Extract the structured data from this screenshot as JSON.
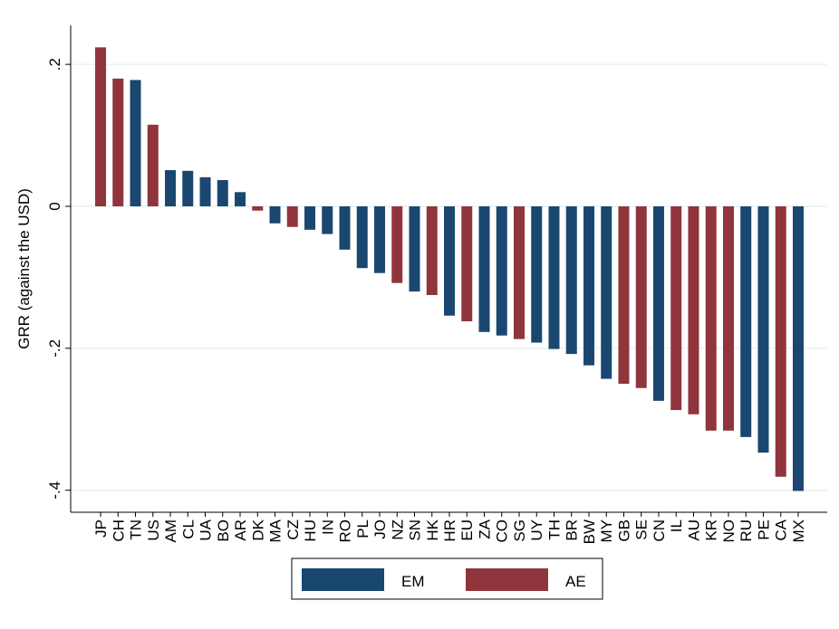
{
  "chart_data": {
    "type": "bar",
    "ylabel": "GRR (against the USD)",
    "categories": [
      "JP",
      "CH",
      "TN",
      "US",
      "AM",
      "CL",
      "UA",
      "BO",
      "AR",
      "DK",
      "MA",
      "CZ",
      "HU",
      "IN",
      "RO",
      "PL",
      "JO",
      "NZ",
      "SN",
      "HK",
      "HR",
      "EU",
      "ZA",
      "CO",
      "SG",
      "UY",
      "TH",
      "BR",
      "BW",
      "MY",
      "GB",
      "SE",
      "CN",
      "IL",
      "AU",
      "KR",
      "NO",
      "RU",
      "PE",
      "CA",
      "MX"
    ],
    "series": [
      {
        "name": "EM",
        "color": "#1a476f",
        "values": [
          null,
          null,
          0.178,
          null,
          0.051,
          0.05,
          0.041,
          0.037,
          0.02,
          null,
          -0.024,
          null,
          -0.033,
          -0.039,
          -0.061,
          -0.087,
          -0.094,
          null,
          -0.12,
          null,
          -0.154,
          null,
          -0.177,
          -0.182,
          null,
          -0.192,
          -0.201,
          -0.208,
          -0.224,
          -0.243,
          null,
          null,
          -0.274,
          null,
          null,
          null,
          null,
          -0.325,
          -0.347,
          null,
          -0.401
        ]
      },
      {
        "name": "AE",
        "color": "#90353b",
        "values": [
          0.224,
          0.18,
          null,
          0.115,
          null,
          null,
          null,
          null,
          null,
          -0.006,
          null,
          -0.029,
          null,
          null,
          null,
          null,
          null,
          -0.108,
          null,
          -0.125,
          null,
          -0.162,
          null,
          null,
          -0.187,
          null,
          null,
          null,
          null,
          null,
          -0.25,
          -0.256,
          null,
          -0.287,
          -0.293,
          -0.316,
          -0.316,
          null,
          null,
          -0.381,
          null
        ]
      }
    ],
    "ylim": [
      -0.431,
      0.255
    ],
    "yticks": [
      {
        "value": -0.4,
        "label": "-.4"
      },
      {
        "value": -0.2,
        "label": "-.2"
      },
      0,
      {
        "value": 0.2,
        "label": ".2"
      }
    ],
    "grid": true
  }
}
